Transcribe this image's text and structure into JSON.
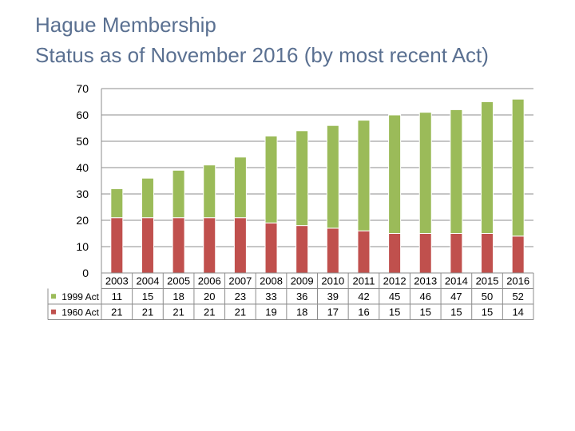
{
  "chart_data": {
    "type": "bar",
    "stacked": true,
    "title": "Hague Membership",
    "subtitle": "Status as of November 2016 (by most recent Act)",
    "categories": [
      "2003",
      "2004",
      "2005",
      "2006",
      "2007",
      "2008",
      "2009",
      "2010",
      "2011",
      "2012",
      "2013",
      "2014",
      "2015",
      "2016"
    ],
    "series": [
      {
        "name": "1960 Act",
        "color": "#c0504d",
        "values": [
          21,
          21,
          21,
          21,
          21,
          19,
          18,
          17,
          16,
          15,
          15,
          15,
          15,
          14
        ]
      },
      {
        "name": "1999 Act",
        "color": "#9bbb59",
        "values": [
          11,
          15,
          18,
          20,
          23,
          33,
          36,
          39,
          42,
          45,
          46,
          47,
          50,
          52
        ]
      }
    ],
    "yticks": [
      0,
      10,
      20,
      30,
      40,
      50,
      60,
      70
    ],
    "ylim": [
      0,
      70
    ],
    "grid": true,
    "legend_placement": "data-table-left"
  }
}
